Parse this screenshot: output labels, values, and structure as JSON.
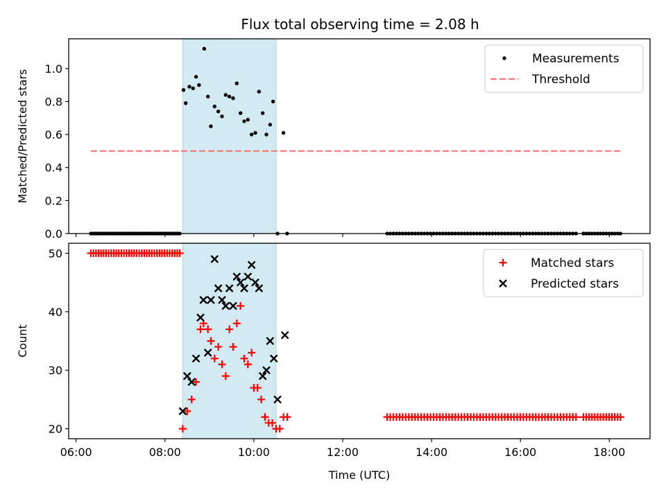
{
  "figure_title": "Flux total observing time = 2.08 h",
  "colors": {
    "shade": "#add8e6",
    "measure": "#000000",
    "threshold": "#ff6f6f",
    "matched": "#ff0000",
    "predicted": "#000000"
  },
  "chart_data": [
    {
      "type": "scatter",
      "title": "Flux total observing time = 2.08 h",
      "xlabel": "",
      "ylabel": "Matched/Predicted stars",
      "xlim": [
        "05:50",
        "18:55"
      ],
      "ylim": [
        0,
        1.18
      ],
      "yticks": [
        0.0,
        0.2,
        0.4,
        0.6,
        0.8,
        1.0
      ],
      "ytick_labels": [
        "0.0",
        "0.2",
        "0.4",
        "0.6",
        "0.8",
        "1.0"
      ],
      "xticks": [
        "06:00",
        "08:00",
        "10:00",
        "12:00",
        "14:00",
        "16:00",
        "18:00"
      ],
      "shaded_span": [
        "08:24",
        "10:30"
      ],
      "legend": [
        "Measurements",
        "Threshold"
      ],
      "legend_position": "top-right",
      "threshold": {
        "name": "Threshold",
        "y": 0.5,
        "x_range": [
          "06:20",
          "18:15"
        ],
        "style": "dashed"
      },
      "series": [
        {
          "name": "Measurements",
          "points": [
            [
              "08:25",
              0.87
            ],
            [
              "08:28",
              0.79
            ],
            [
              "08:33",
              0.89
            ],
            [
              "08:38",
              0.88
            ],
            [
              "08:42",
              0.95
            ],
            [
              "08:46",
              0.9
            ],
            [
              "08:53",
              1.12
            ],
            [
              "08:58",
              0.83
            ],
            [
              "09:02",
              0.65
            ],
            [
              "09:07",
              0.77
            ],
            [
              "09:12",
              0.74
            ],
            [
              "09:17",
              0.71
            ],
            [
              "09:22",
              0.84
            ],
            [
              "09:27",
              0.83
            ],
            [
              "09:32",
              0.82
            ],
            [
              "09:37",
              0.91
            ],
            [
              "09:42",
              0.73
            ],
            [
              "09:47",
              0.68
            ],
            [
              "09:52",
              0.69
            ],
            [
              "09:57",
              0.6
            ],
            [
              "10:02",
              0.61
            ],
            [
              "10:07",
              0.86
            ],
            [
              "10:12",
              0.73
            ],
            [
              "10:17",
              0.6
            ],
            [
              "10:22",
              0.66
            ],
            [
              "10:26",
              0.8
            ],
            [
              "10:40",
              0.61
            ]
          ],
          "zeros": {
            "ranges": [
              [
                "06:20",
                "08:20",
                43
              ],
              [
                "13:00",
                "17:15",
                62
              ],
              [
                "17:25",
                "18:15",
                14
              ]
            ],
            "singles": [
              "10:32",
              "10:45"
            ]
          }
        }
      ]
    },
    {
      "type": "scatter",
      "title": "",
      "xlabel": "Time (UTC)",
      "ylabel": "Count",
      "xlim": [
        "05:50",
        "18:55"
      ],
      "ylim": [
        18.3,
        51.7
      ],
      "yticks": [
        20,
        30,
        40,
        50
      ],
      "ytick_labels": [
        "20",
        "30",
        "40",
        "50"
      ],
      "xticks": [
        "06:00",
        "08:00",
        "10:00",
        "12:00",
        "14:00",
        "16:00",
        "18:00"
      ],
      "shaded_span": [
        "08:24",
        "10:30"
      ],
      "legend": [
        "Matched stars",
        "Predicted stars"
      ],
      "legend_position": "top-right",
      "series": [
        {
          "name": "Matched stars",
          "marker": "+",
          "points": [
            [
              "08:24",
              20
            ],
            [
              "08:30",
              23
            ],
            [
              "08:36",
              25
            ],
            [
              "08:42",
              28
            ],
            [
              "08:48",
              37
            ],
            [
              "08:52",
              38
            ],
            [
              "08:58",
              37
            ],
            [
              "09:02",
              35
            ],
            [
              "09:07",
              32
            ],
            [
              "09:12",
              34
            ],
            [
              "09:17",
              31
            ],
            [
              "09:22",
              29
            ],
            [
              "09:27",
              37
            ],
            [
              "09:32",
              34
            ],
            [
              "09:37",
              38
            ],
            [
              "09:42",
              41
            ],
            [
              "09:47",
              32
            ],
            [
              "09:52",
              31
            ],
            [
              "09:57",
              33
            ],
            [
              "10:00",
              27
            ],
            [
              "10:05",
              27
            ],
            [
              "10:10",
              25
            ],
            [
              "10:15",
              22
            ],
            [
              "10:20",
              21
            ],
            [
              "10:25",
              21
            ],
            [
              "10:30",
              20
            ],
            [
              "10:35",
              20
            ],
            [
              "10:40",
              22
            ],
            [
              "10:45",
              22
            ]
          ],
          "constant_ranges": [
            [
              "06:20",
              "08:20",
              50,
              36
            ],
            [
              "13:00",
              "17:15",
              22,
              62
            ],
            [
              "17:25",
              "18:15",
              22,
              14
            ]
          ]
        },
        {
          "name": "Predicted stars",
          "marker": "x",
          "points": [
            [
              "08:24",
              23
            ],
            [
              "08:30",
              29
            ],
            [
              "08:36",
              28
            ],
            [
              "08:42",
              32
            ],
            [
              "08:48",
              39
            ],
            [
              "08:52",
              42
            ],
            [
              "08:58",
              33
            ],
            [
              "09:02",
              42
            ],
            [
              "09:07",
              49
            ],
            [
              "09:12",
              44
            ],
            [
              "09:17",
              42
            ],
            [
              "09:22",
              41
            ],
            [
              "09:27",
              44
            ],
            [
              "09:32",
              41
            ],
            [
              "09:37",
              46
            ],
            [
              "09:42",
              45
            ],
            [
              "09:47",
              44
            ],
            [
              "09:52",
              46
            ],
            [
              "09:57",
              48
            ],
            [
              "10:02",
              45
            ],
            [
              "10:07",
              44
            ],
            [
              "10:12",
              29
            ],
            [
              "10:17",
              30
            ],
            [
              "10:22",
              35
            ],
            [
              "10:27",
              32
            ],
            [
              "10:32",
              25
            ],
            [
              "10:42",
              36
            ]
          ]
        }
      ]
    }
  ]
}
